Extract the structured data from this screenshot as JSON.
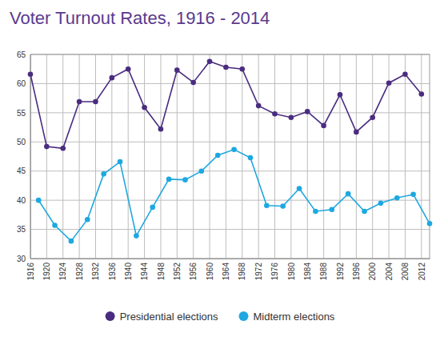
{
  "chart_data": {
    "type": "line",
    "title": "Voter Turnout Rates, 1916 - 2014",
    "xlim": [
      1916,
      2014
    ],
    "xticks": [
      1916,
      1920,
      1924,
      1928,
      1932,
      1936,
      1940,
      1944,
      1948,
      1952,
      1956,
      1960,
      1964,
      1968,
      1972,
      1976,
      1980,
      1984,
      1988,
      1992,
      1996,
      2000,
      2004,
      2008,
      2012
    ],
    "ylim": [
      30,
      65
    ],
    "yticks": [
      30,
      35,
      40,
      45,
      50,
      55,
      60,
      65
    ],
    "grid": true,
    "legend": "bottom",
    "series": [
      {
        "name": "Presidential elections",
        "color": "#4a2c80",
        "marker": "circle",
        "x": [
          1916,
          1920,
          1924,
          1928,
          1932,
          1936,
          1940,
          1944,
          1948,
          1952,
          1956,
          1960,
          1964,
          1968,
          1972,
          1976,
          1980,
          1984,
          1988,
          1992,
          1996,
          2000,
          2004,
          2008,
          2012
        ],
        "values": [
          61.6,
          49.2,
          48.9,
          56.9,
          56.9,
          61.0,
          62.5,
          55.9,
          52.2,
          62.3,
          60.2,
          63.8,
          62.8,
          62.5,
          56.2,
          54.8,
          54.2,
          55.2,
          52.8,
          58.1,
          51.7,
          54.2,
          60.1,
          61.6,
          58.2
        ]
      },
      {
        "name": "Midterm elections",
        "color": "#1ea8e0",
        "marker": "circle",
        "x": [
          1918,
          1922,
          1926,
          1930,
          1934,
          1938,
          1942,
          1946,
          1950,
          1954,
          1958,
          1962,
          1966,
          1970,
          1974,
          1978,
          1982,
          1986,
          1990,
          1994,
          1998,
          2002,
          2006,
          2010,
          2014
        ],
        "values": [
          40.0,
          35.7,
          33.0,
          36.7,
          44.5,
          46.6,
          33.9,
          38.8,
          43.6,
          43.5,
          45.0,
          47.7,
          48.7,
          47.3,
          39.1,
          39.0,
          42.0,
          38.1,
          38.4,
          41.1,
          38.1,
          39.5,
          40.4,
          41.0,
          36.0
        ]
      }
    ]
  }
}
